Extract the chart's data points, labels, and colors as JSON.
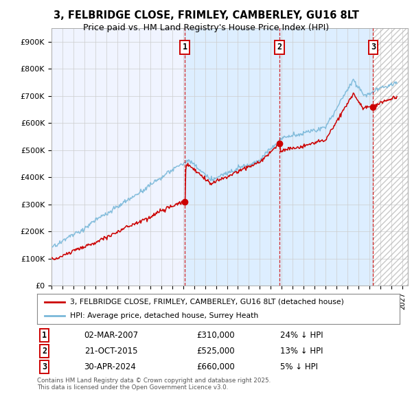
{
  "title_line1": "3, FELBRIDGE CLOSE, FRIMLEY, CAMBERLEY, GU16 8LT",
  "title_line2": "Price paid vs. HM Land Registry's House Price Index (HPI)",
  "ylim": [
    0,
    950000
  ],
  "yticks": [
    0,
    100000,
    200000,
    300000,
    400000,
    500000,
    600000,
    700000,
    800000,
    900000
  ],
  "ytick_labels": [
    "£0",
    "£100K",
    "£200K",
    "£300K",
    "£400K",
    "£500K",
    "£600K",
    "£700K",
    "£800K",
    "£900K"
  ],
  "xlim_start": 1995.0,
  "xlim_end": 2027.5,
  "sale_dates": [
    2007.17,
    2015.81,
    2024.33
  ],
  "sale_prices": [
    310000,
    525000,
    660000
  ],
  "sale_labels": [
    "1",
    "2",
    "3"
  ],
  "sale_date_strs": [
    "02-MAR-2007",
    "21-OCT-2015",
    "30-APR-2024"
  ],
  "sale_price_strs": [
    "£310,000",
    "£525,000",
    "£660,000"
  ],
  "sale_hpi_strs": [
    "24% ↓ HPI",
    "13% ↓ HPI",
    "5% ↓ HPI"
  ],
  "hpi_color": "#7ab8d9",
  "price_color": "#cc0000",
  "background_color": "#ffffff",
  "plot_bg_color": "#f0f4ff",
  "highlight_color": "#ddeeff",
  "grid_color": "#cccccc",
  "legend_label_price": "3, FELBRIDGE CLOSE, FRIMLEY, CAMBERLEY, GU16 8LT (detached house)",
  "legend_label_hpi": "HPI: Average price, detached house, Surrey Heath",
  "footnote": "Contains HM Land Registry data © Crown copyright and database right 2025.\nThis data is licensed under the Open Government Licence v3.0."
}
